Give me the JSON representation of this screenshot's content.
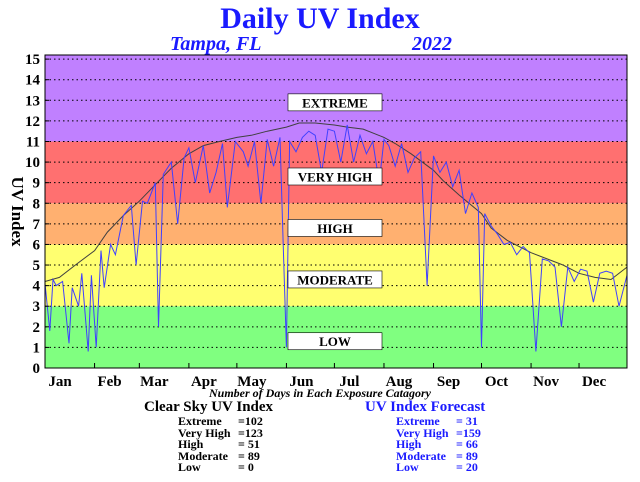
{
  "header": {
    "title": "Daily UV Index",
    "city": "Tampa, FL",
    "year": "2022"
  },
  "caption": "Number of Days in Each Exposure Catagory",
  "colors": {
    "title": "#1a1aff",
    "extreme": "#c080ff",
    "very_high": "#ff7070",
    "high": "#ffb070",
    "moderate": "#ffff70",
    "low": "#80ff80",
    "clear_sky_line": "#404040",
    "forecast_line": "#4040ff"
  },
  "chart_data": {
    "type": "line",
    "title": "Daily UV Index",
    "ylabel": "UV Index",
    "xlabel": "",
    "ylim": [
      0,
      15
    ],
    "xlim": [
      1,
      365
    ],
    "y_ticks": [
      "0",
      "1",
      "2",
      "3",
      "4",
      "5",
      "6",
      "7",
      "8",
      "9",
      "10",
      "11",
      "12",
      "13",
      "14",
      "15"
    ],
    "x_ticks": [
      "Jan",
      "Feb",
      "Mar",
      "Apr",
      "May",
      "Jun",
      "Jul",
      "Aug",
      "Sep",
      "Oct",
      "Nov",
      "Dec"
    ],
    "x_tick_days": [
      1,
      32,
      60,
      91,
      121,
      152,
      182,
      213,
      244,
      274,
      305,
      335
    ],
    "bands": [
      {
        "label": "LOW",
        "from": 0,
        "to": 3,
        "label_y": 1.3
      },
      {
        "label": "MODERATE",
        "from": 3,
        "to": 6,
        "label_y": 4.3
      },
      {
        "label": "HIGH",
        "from": 6,
        "to": 8,
        "label_y": 6.8
      },
      {
        "label": "VERY HIGH",
        "from": 8,
        "to": 11,
        "label_y": 9.3
      },
      {
        "label": "EXTREME",
        "from": 11,
        "to": 15.2,
        "label_y": 12.9
      }
    ],
    "grid": "dotted horizontal",
    "series": [
      {
        "legend": "Clear Sky UV Index",
        "x": [
          1,
          10,
          20,
          32,
          40,
          50,
          60,
          70,
          80,
          91,
          100,
          110,
          121,
          130,
          140,
          152,
          160,
          170,
          182,
          190,
          200,
          213,
          220,
          230,
          244,
          250,
          260,
          274,
          280,
          290,
          305,
          315,
          325,
          335,
          345,
          355,
          365
        ],
        "values": [
          4.2,
          4.4,
          5.0,
          5.7,
          6.6,
          7.4,
          8.1,
          8.9,
          9.7,
          10.4,
          10.8,
          11.0,
          11.2,
          11.3,
          11.5,
          11.7,
          11.9,
          11.9,
          11.8,
          11.7,
          11.6,
          11.2,
          10.9,
          10.4,
          9.6,
          9.1,
          8.4,
          7.5,
          6.8,
          6.2,
          5.6,
          5.3,
          5.0,
          4.6,
          4.4,
          4.3,
          4.9
        ]
      },
      {
        "legend": "UV Index Forecast",
        "x": [
          1,
          4,
          6,
          8,
          12,
          16,
          18,
          22,
          24,
          28,
          30,
          33,
          36,
          38,
          42,
          45,
          50,
          55,
          58,
          62,
          65,
          70,
          72,
          75,
          80,
          84,
          88,
          91,
          95,
          100,
          104,
          108,
          112,
          115,
          120,
          125,
          128,
          132,
          136,
          140,
          144,
          148,
          150,
          152,
          154,
          158,
          162,
          166,
          170,
          174,
          178,
          182,
          186,
          190,
          194,
          198,
          202,
          206,
          210,
          213,
          216,
          220,
          224,
          228,
          232,
          236,
          240,
          244,
          248,
          252,
          256,
          260,
          264,
          268,
          272,
          274,
          276,
          280,
          284,
          288,
          292,
          296,
          300,
          304,
          308,
          312,
          316,
          320,
          324,
          328,
          332,
          336,
          340,
          344,
          348,
          352,
          356,
          360,
          365
        ],
        "values": [
          4.1,
          1.8,
          4.3,
          4.0,
          4.2,
          1.2,
          3.9,
          3.0,
          4.6,
          0.8,
          4.5,
          1.0,
          5.7,
          3.9,
          6.0,
          5.5,
          7.4,
          7.9,
          5.0,
          8.1,
          8.0,
          9.0,
          2.0,
          9.4,
          10.0,
          7.0,
          10.2,
          10.7,
          9.0,
          10.8,
          8.5,
          9.5,
          10.9,
          7.8,
          11.0,
          10.5,
          9.8,
          11.0,
          8.0,
          11.1,
          9.8,
          11.2,
          6.0,
          1.0,
          11.0,
          10.5,
          11.2,
          11.5,
          11.3,
          9.5,
          11.6,
          11.5,
          10.0,
          11.8,
          10.0,
          11.3,
          10.4,
          11.0,
          9.0,
          11.1,
          10.8,
          9.8,
          10.9,
          9.5,
          10.2,
          10.5,
          4.0,
          10.3,
          9.5,
          10.0,
          8.8,
          9.6,
          7.5,
          8.5,
          7.8,
          1.0,
          7.5,
          6.9,
          6.5,
          6.0,
          6.1,
          5.5,
          5.9,
          5.6,
          0.8,
          5.3,
          5.2,
          4.9,
          2.0,
          4.9,
          4.2,
          4.8,
          4.7,
          3.2,
          4.6,
          4.7,
          4.6,
          3.0,
          4.5
        ]
      }
    ]
  },
  "stats": {
    "clear_sky": {
      "title": "Clear Sky UV Index",
      "rows": [
        {
          "label": "Extreme",
          "value": "=102"
        },
        {
          "label": "Very High",
          "value": "=123"
        },
        {
          "label": "High",
          "value": "= 51"
        },
        {
          "label": "Moderate",
          "value": "= 89"
        },
        {
          "label": "Low",
          "value": "=   0"
        }
      ]
    },
    "forecast": {
      "title": "UV Index Forecast",
      "rows": [
        {
          "label": "Extreme",
          "value": "= 31"
        },
        {
          "label": "Very High",
          "value": "=159"
        },
        {
          "label": "High",
          "value": "= 66"
        },
        {
          "label": "Moderate",
          "value": "= 89"
        },
        {
          "label": "Low",
          "value": "= 20"
        }
      ]
    }
  }
}
